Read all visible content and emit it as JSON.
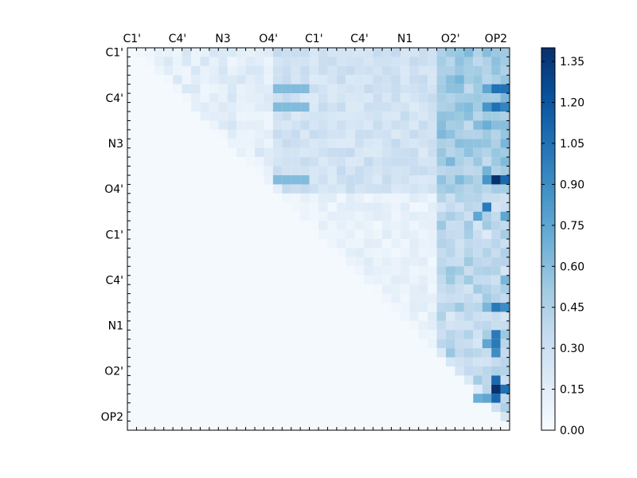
{
  "chart_data": {
    "type": "heatmap",
    "title": "",
    "xlabel": "",
    "ylabel": "",
    "x_tick_labels": [
      "C1'",
      "C4'",
      "N3",
      "O4'",
      "C1'",
      "C4'",
      "N1",
      "O2'",
      "OP2"
    ],
    "y_tick_labels": [
      "C1'",
      "C4'",
      "N3",
      "O4'",
      "C1'",
      "C4'",
      "N1",
      "O2'",
      "OP2"
    ],
    "x_tick_position": "top",
    "n_rows": 42,
    "n_cols": 42,
    "color_scale": {
      "colormap": "Blues",
      "vmin": 0.0,
      "vmax": 1.4,
      "ticks": [
        "0.00",
        "0.15",
        "0.30",
        "0.45",
        "0.60",
        "0.75",
        "0.90",
        "1.05",
        "1.20",
        "1.35"
      ],
      "tick_values": [
        0.0,
        0.15,
        0.3,
        0.45,
        0.6,
        0.75,
        0.9,
        1.05,
        1.2,
        1.35
      ]
    },
    "base_level": 0.02,
    "highlights": [
      {
        "row": 14,
        "col": 40,
        "value": 1.4
      },
      {
        "row": 37,
        "col": 40,
        "value": 1.4
      },
      {
        "row": 14,
        "col": 41,
        "value": 1.1
      },
      {
        "row": 37,
        "col": 41,
        "value": 1.05
      },
      {
        "row": 36,
        "col": 40,
        "value": 1.1
      },
      {
        "row": 38,
        "col": 40,
        "value": 1.1
      },
      {
        "row": 4,
        "col": 40,
        "value": 1.05
      },
      {
        "row": 4,
        "col": 41,
        "value": 1.05
      },
      {
        "row": 6,
        "col": 40,
        "value": 1.05
      },
      {
        "row": 6,
        "col": 41,
        "value": 0.95
      },
      {
        "row": 17,
        "col": 39,
        "value": 1.0
      },
      {
        "row": 28,
        "col": 40,
        "value": 1.0
      },
      {
        "row": 28,
        "col": 41,
        "value": 0.9
      },
      {
        "row": 31,
        "col": 40,
        "value": 1.0
      },
      {
        "row": 32,
        "col": 40,
        "value": 1.0
      },
      {
        "row": 33,
        "col": 40,
        "value": 0.9
      },
      {
        "row": 32,
        "col": 39,
        "value": 0.75
      },
      {
        "row": 38,
        "col": 39,
        "value": 0.75
      },
      {
        "row": 38,
        "col": 38,
        "value": 0.7
      },
      {
        "row": 4,
        "col": 39,
        "value": 0.75
      },
      {
        "row": 6,
        "col": 39,
        "value": 0.85
      },
      {
        "row": 14,
        "col": 39,
        "value": 0.85
      },
      {
        "row": 18,
        "col": 38,
        "value": 0.75
      },
      {
        "row": 18,
        "col": 41,
        "value": 0.75
      },
      {
        "row": 8,
        "col": 39,
        "value": 0.7
      },
      {
        "row": 8,
        "col": 40,
        "value": 0.6
      },
      {
        "row": 8,
        "col": 41,
        "value": 0.6
      },
      {
        "row": 10,
        "col": 41,
        "value": 0.65
      },
      {
        "row": 25,
        "col": 41,
        "value": 0.65
      },
      {
        "row": 28,
        "col": 39,
        "value": 0.65
      }
    ]
  }
}
